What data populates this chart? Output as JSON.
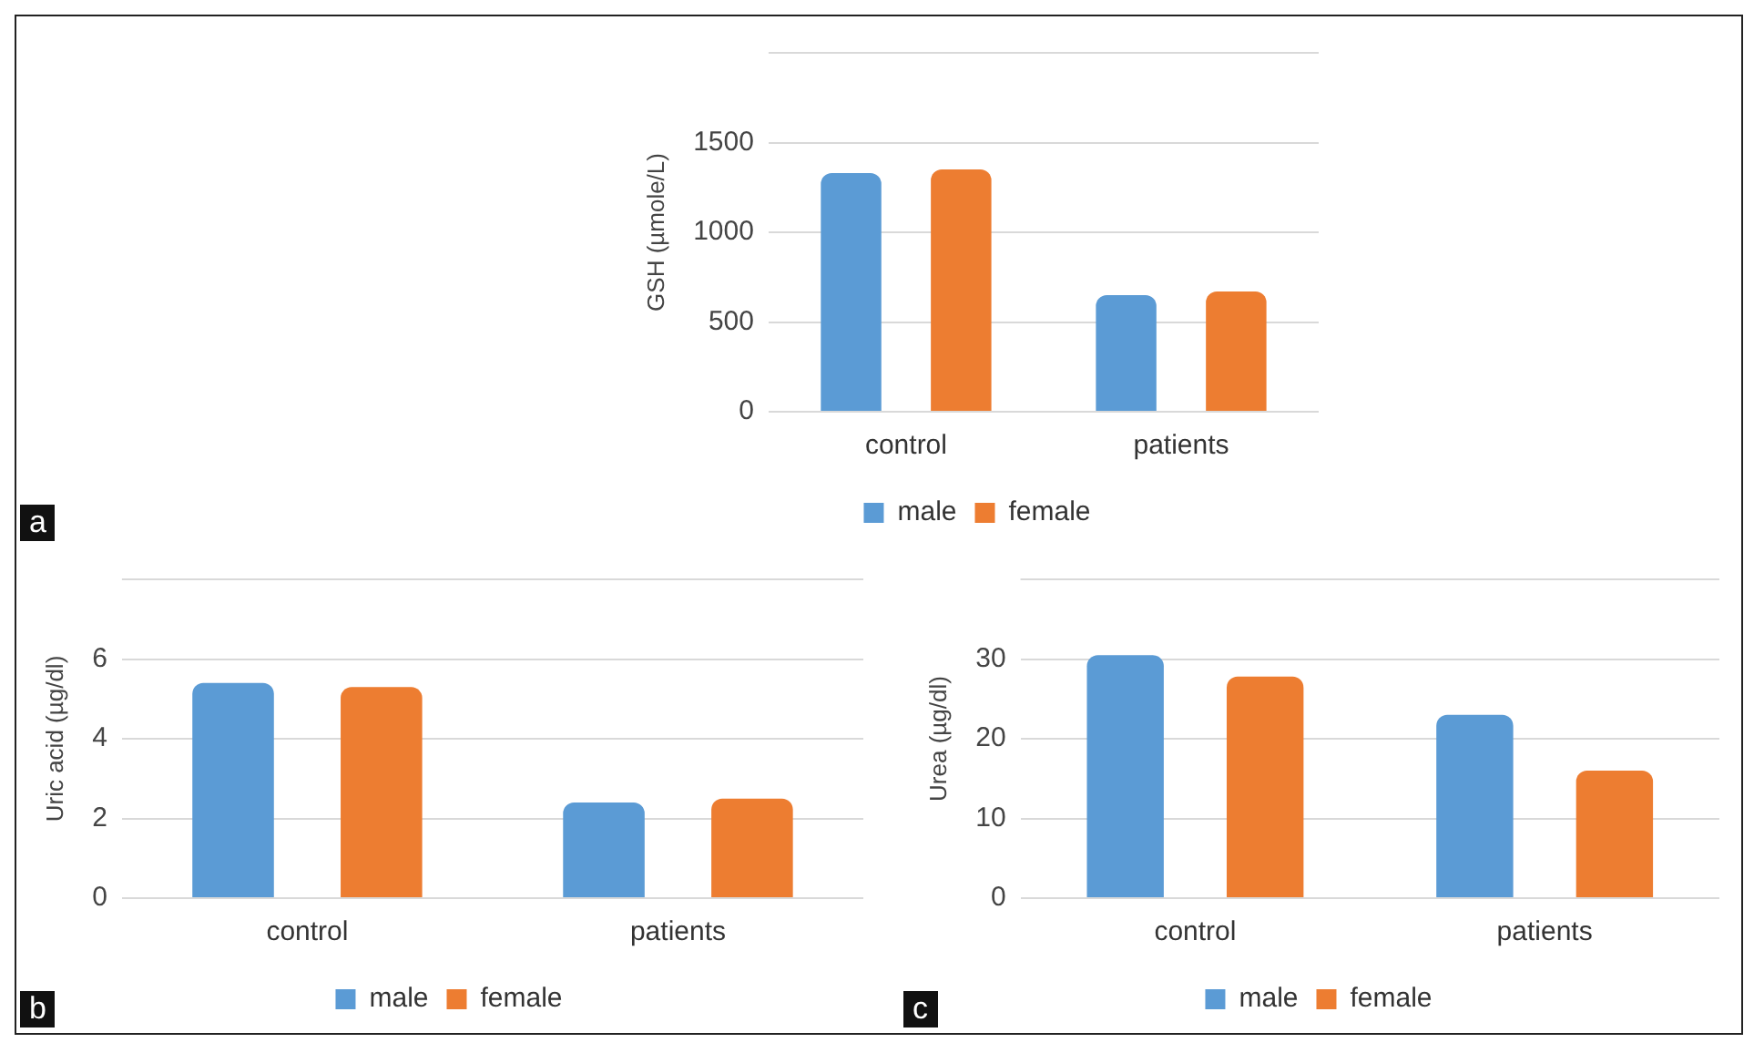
{
  "chart_data": [
    {
      "type": "bar",
      "ylabel": "GSH (µmole/L)",
      "categories": [
        "control",
        "patients"
      ],
      "series": [
        {
          "name": "male",
          "color": "#5b9bd5",
          "values": [
            1330,
            650
          ]
        },
        {
          "name": "female",
          "color": "#ed7d31",
          "values": [
            1350,
            670
          ]
        }
      ],
      "ylim": [
        0,
        2000
      ],
      "yticks": [
        0,
        500,
        1000,
        1500
      ],
      "grid": "y",
      "legend": "bottom",
      "annotations": [
        "a"
      ]
    },
    {
      "type": "bar",
      "ylabel": "Uric acid (µg/dl)",
      "categories": [
        "control",
        "patients"
      ],
      "series": [
        {
          "name": "male",
          "color": "#5b9bd5",
          "values": [
            5.4,
            2.4
          ]
        },
        {
          "name": "female",
          "color": "#ed7d31",
          "values": [
            5.3,
            2.5
          ]
        }
      ],
      "ylim": [
        0,
        8
      ],
      "yticks": [
        0,
        2,
        4,
        6
      ],
      "grid": "y",
      "legend": "bottom",
      "annotations": [
        "b"
      ]
    },
    {
      "type": "bar",
      "ylabel": "Urea (µg/dl)",
      "categories": [
        "control",
        "patients"
      ],
      "series": [
        {
          "name": "male",
          "color": "#5b9bd5",
          "values": [
            30.5,
            23
          ]
        },
        {
          "name": "female",
          "color": "#ed7d31",
          "values": [
            27.8,
            16
          ]
        }
      ],
      "ylim": [
        0,
        40
      ],
      "yticks": [
        0,
        10,
        20,
        30
      ],
      "grid": "y",
      "legend": "bottom",
      "annotations": [
        "c"
      ]
    }
  ]
}
